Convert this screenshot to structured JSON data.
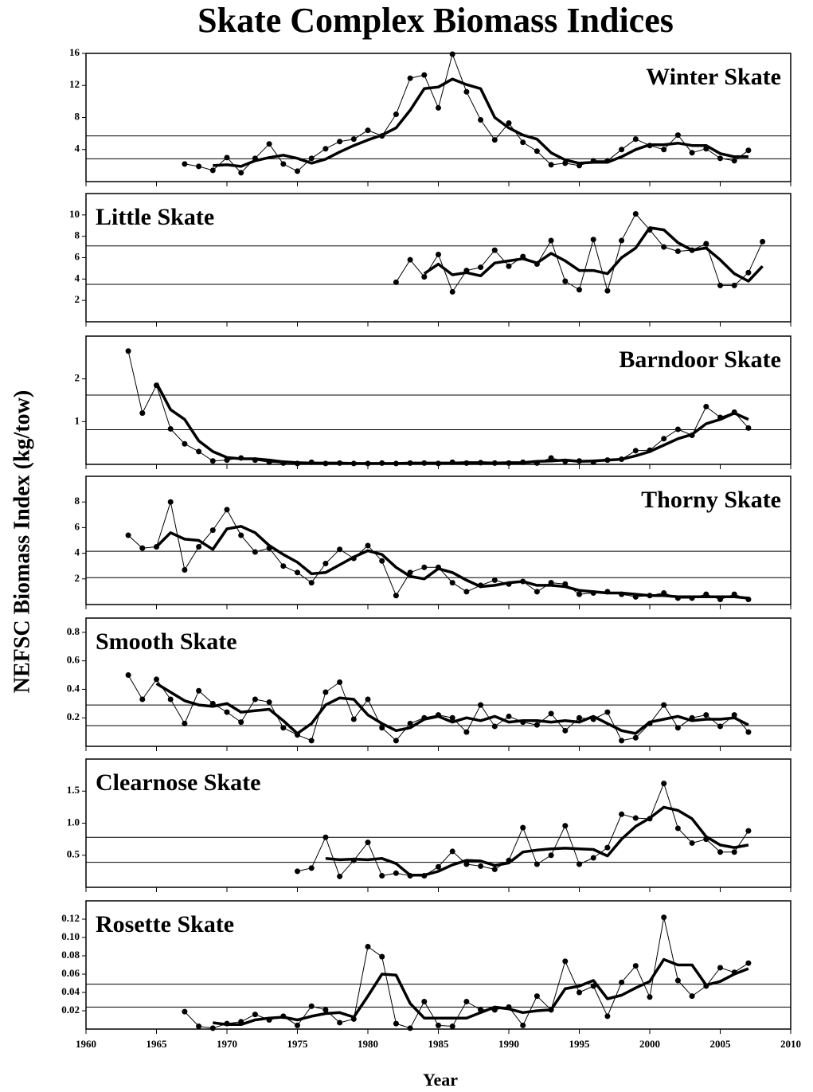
{
  "title": "Skate Complex Biomass Indices",
  "y_label": "NEFSC Biomass Index (kg/tow)",
  "x_label": "Year",
  "chart_data": [
    {
      "type": "line",
      "title": "Winter Skate",
      "title_position": "right",
      "x": [
        1967,
        1968,
        1969,
        1970,
        1971,
        1972,
        1973,
        1974,
        1975,
        1976,
        1977,
        1978,
        1979,
        1980,
        1981,
        1982,
        1983,
        1984,
        1985,
        1986,
        1987,
        1988,
        1989,
        1990,
        1991,
        1992,
        1993,
        1994,
        1995,
        1996,
        1997,
        1998,
        1999,
        2000,
        2001,
        2002,
        2003,
        2004,
        2005,
        2006,
        2007
      ],
      "series": [
        {
          "color": "#000000",
          "line_width": 1,
          "markers": true,
          "values": [
            2.2,
            1.9,
            1.4,
            3.0,
            1.1,
            2.9,
            4.7,
            2.2,
            1.3,
            2.9,
            4.1,
            5.0,
            5.3,
            6.4,
            5.7,
            8.4,
            12.9,
            13.3,
            9.2,
            15.9,
            11.2,
            7.7,
            5.2,
            7.3,
            4.9,
            3.8,
            2.1,
            2.3,
            2.0,
            2.6,
            2.6,
            4.0,
            5.3,
            4.5,
            4.0,
            5.8,
            3.6,
            4.1,
            2.9,
            2.6,
            3.9
          ]
        },
        {
          "color": "#000000",
          "line_width": 3.5,
          "markers": false,
          "values": [
            null,
            null,
            2.0,
            2.1,
            1.9,
            2.6,
            3.0,
            3.3,
            2.9,
            2.3,
            2.8,
            3.7,
            4.5,
            5.2,
            5.8,
            6.7,
            8.9,
            11.6,
            11.8,
            12.8,
            12.1,
            11.6,
            8.0,
            6.7,
            5.8,
            5.3,
            3.6,
            2.7,
            2.3,
            2.4,
            2.4,
            3.1,
            4.0,
            4.6,
            4.6,
            4.8,
            4.5,
            4.5,
            3.5,
            3.1,
            3.1
          ]
        }
      ],
      "reference_lines": [
        5.7,
        2.85
      ],
      "ylim": [
        0,
        16
      ],
      "yticks": [
        4,
        8,
        12,
        16
      ],
      "xlim": [
        1960,
        2010
      ]
    },
    {
      "type": "line",
      "title": "Little Skate",
      "title_position": "left",
      "x": [
        1982,
        1983,
        1984,
        1985,
        1986,
        1987,
        1988,
        1989,
        1990,
        1991,
        1992,
        1993,
        1994,
        1995,
        1996,
        1997,
        1998,
        1999,
        2000,
        2001,
        2002,
        2003,
        2004,
        2005,
        2006,
        2007,
        2008
      ],
      "series": [
        {
          "color": "#000000",
          "line_width": 1,
          "markers": true,
          "values": [
            3.7,
            5.8,
            4.2,
            6.3,
            2.8,
            4.8,
            5.1,
            6.7,
            5.2,
            6.1,
            5.4,
            7.6,
            3.8,
            3.0,
            7.7,
            2.9,
            7.6,
            10.1,
            8.6,
            7.0,
            6.6,
            6.7,
            7.3,
            3.4,
            3.4,
            4.6,
            7.5
          ]
        },
        {
          "color": "#000000",
          "line_width": 3.5,
          "markers": false,
          "values": [
            null,
            null,
            4.5,
            5.4,
            4.4,
            4.6,
            4.3,
            5.5,
            5.7,
            5.9,
            5.5,
            6.4,
            5.7,
            4.8,
            4.8,
            4.5,
            6.0,
            6.9,
            8.8,
            8.6,
            7.4,
            6.7,
            6.9,
            5.8,
            4.5,
            3.8,
            5.2
          ]
        }
      ],
      "reference_lines": [
        7.1,
        3.5
      ],
      "ylim": [
        0,
        12
      ],
      "yticks": [
        2,
        4,
        6,
        8,
        10
      ],
      "xlim": [
        1960,
        2010
      ]
    },
    {
      "type": "line",
      "title": "Barndoor Skate",
      "title_position": "right",
      "x": [
        1963,
        1964,
        1965,
        1966,
        1967,
        1968,
        1969,
        1970,
        1971,
        1972,
        1973,
        1974,
        1975,
        1976,
        1977,
        1978,
        1979,
        1980,
        1981,
        1982,
        1983,
        1984,
        1985,
        1986,
        1987,
        1988,
        1989,
        1990,
        1991,
        1992,
        1993,
        1994,
        1995,
        1996,
        1997,
        1998,
        1999,
        2000,
        2001,
        2002,
        2003,
        2004,
        2005,
        2006,
        2007
      ],
      "series": [
        {
          "color": "#000000",
          "line_width": 1,
          "markers": true,
          "values": [
            2.65,
            1.2,
            1.85,
            0.83,
            0.48,
            0.3,
            0.08,
            0.1,
            0.15,
            0.1,
            0.05,
            0.03,
            0.02,
            0.05,
            0.02,
            0.03,
            0.02,
            0.02,
            0.03,
            0.02,
            0.03,
            0.03,
            0.02,
            0.05,
            0.03,
            0.04,
            0.03,
            0.03,
            0.05,
            0.03,
            0.15,
            0.07,
            0.08,
            0.05,
            0.1,
            0.12,
            0.32,
            0.33,
            0.6,
            0.82,
            0.68,
            1.35,
            1.1,
            1.22,
            0.85
          ]
        },
        {
          "color": "#000000",
          "line_width": 3.5,
          "markers": false,
          "values": [
            null,
            null,
            1.9,
            1.28,
            1.05,
            0.55,
            0.3,
            0.16,
            0.13,
            0.13,
            0.1,
            0.06,
            0.04,
            0.03,
            0.03,
            0.03,
            0.02,
            0.02,
            0.02,
            0.02,
            0.03,
            0.03,
            0.03,
            0.03,
            0.04,
            0.04,
            0.03,
            0.04,
            0.04,
            0.07,
            0.08,
            0.1,
            0.07,
            0.08,
            0.1,
            0.12,
            0.2,
            0.3,
            0.45,
            0.6,
            0.7,
            0.95,
            1.05,
            1.2,
            1.05
          ]
        }
      ],
      "reference_lines": [
        1.62,
        0.81
      ],
      "ylim": [
        0,
        3
      ],
      "yticks": [
        1,
        2
      ],
      "xlim": [
        1960,
        2010
      ]
    },
    {
      "type": "line",
      "title": "Thorny Skate",
      "title_position": "right",
      "x": [
        1963,
        1964,
        1965,
        1966,
        1967,
        1968,
        1969,
        1970,
        1971,
        1972,
        1973,
        1974,
        1975,
        1976,
        1977,
        1978,
        1979,
        1980,
        1981,
        1982,
        1983,
        1984,
        1985,
        1986,
        1987,
        1988,
        1989,
        1990,
        1991,
        1992,
        1993,
        1994,
        1995,
        1996,
        1997,
        1998,
        1999,
        2000,
        2001,
        2002,
        2003,
        2004,
        2005,
        2006,
        2007
      ],
      "series": [
        {
          "color": "#000000",
          "line_width": 1,
          "markers": true,
          "values": [
            5.4,
            4.4,
            4.5,
            8.0,
            2.7,
            4.5,
            5.8,
            7.4,
            5.4,
            4.1,
            4.4,
            3.0,
            2.5,
            1.7,
            3.2,
            4.3,
            3.6,
            4.6,
            3.4,
            0.7,
            2.5,
            2.9,
            2.9,
            1.7,
            1.0,
            1.5,
            1.9,
            1.6,
            1.8,
            1.0,
            1.7,
            1.6,
            0.8,
            0.9,
            1.0,
            0.8,
            0.6,
            0.7,
            0.9,
            0.5,
            0.5,
            0.8,
            0.4,
            0.8,
            0.4
          ]
        },
        {
          "color": "#000000",
          "line_width": 3.5,
          "markers": false,
          "values": [
            null,
            null,
            4.5,
            5.6,
            5.1,
            5.0,
            4.3,
            5.9,
            6.1,
            5.6,
            4.6,
            3.9,
            3.3,
            2.4,
            2.5,
            3.1,
            3.7,
            4.2,
            3.9,
            2.9,
            2.2,
            2.0,
            2.8,
            2.5,
            1.9,
            1.4,
            1.5,
            1.7,
            1.8,
            1.5,
            1.5,
            1.4,
            1.1,
            1.0,
            0.9,
            0.9,
            0.8,
            0.7,
            0.7,
            0.6,
            0.6,
            0.6,
            0.6,
            0.6,
            0.5
          ]
        }
      ],
      "reference_lines": [
        4.15,
        2.1
      ],
      "ylim": [
        0,
        10
      ],
      "yticks": [
        2,
        4,
        6,
        8
      ],
      "xlim": [
        1960,
        2010
      ]
    },
    {
      "type": "line",
      "title": "Smooth Skate",
      "title_position": "left",
      "x": [
        1963,
        1964,
        1965,
        1966,
        1967,
        1968,
        1969,
        1970,
        1971,
        1972,
        1973,
        1974,
        1975,
        1976,
        1977,
        1978,
        1979,
        1980,
        1981,
        1982,
        1983,
        1984,
        1985,
        1986,
        1987,
        1988,
        1989,
        1990,
        1991,
        1992,
        1993,
        1994,
        1995,
        1996,
        1997,
        1998,
        1999,
        2000,
        2001,
        2002,
        2003,
        2004,
        2005,
        2006,
        2007
      ],
      "series": [
        {
          "color": "#000000",
          "line_width": 1,
          "markers": true,
          "values": [
            0.5,
            0.33,
            0.47,
            0.33,
            0.16,
            0.39,
            0.3,
            0.24,
            0.17,
            0.33,
            0.31,
            0.13,
            0.08,
            0.04,
            0.38,
            0.45,
            0.19,
            0.33,
            0.13,
            0.04,
            0.16,
            0.2,
            0.22,
            0.2,
            0.1,
            0.29,
            0.14,
            0.21,
            0.17,
            0.15,
            0.23,
            0.11,
            0.2,
            0.19,
            0.24,
            0.04,
            0.06,
            0.16,
            0.29,
            0.13,
            0.2,
            0.22,
            0.14,
            0.22,
            0.1
          ]
        },
        {
          "color": "#000000",
          "line_width": 3.5,
          "markers": false,
          "values": [
            null,
            null,
            0.44,
            0.38,
            0.32,
            0.29,
            0.28,
            0.3,
            0.24,
            0.25,
            0.26,
            0.18,
            0.09,
            0.16,
            0.29,
            0.34,
            0.33,
            0.22,
            0.16,
            0.11,
            0.13,
            0.19,
            0.21,
            0.17,
            0.2,
            0.18,
            0.21,
            0.17,
            0.18,
            0.18,
            0.17,
            0.18,
            0.17,
            0.21,
            0.16,
            0.11,
            0.09,
            0.17,
            0.19,
            0.21,
            0.18,
            0.19,
            0.19,
            0.2,
            0.15
          ]
        }
      ],
      "reference_lines": [
        0.29,
        0.145
      ],
      "ylim": [
        0,
        0.9
      ],
      "yticks": [
        0.2,
        0.4,
        0.6,
        0.8
      ],
      "xlim": [
        1960,
        2010
      ]
    },
    {
      "type": "line",
      "title": "Clearnose Skate",
      "title_position": "left",
      "x": [
        1975,
        1976,
        1977,
        1978,
        1979,
        1980,
        1981,
        1982,
        1983,
        1984,
        1985,
        1986,
        1987,
        1988,
        1989,
        1990,
        1991,
        1992,
        1993,
        1994,
        1995,
        1996,
        1997,
        1998,
        1999,
        2000,
        2001,
        2002,
        2003,
        2004,
        2005,
        2006,
        2007
      ],
      "series": [
        {
          "color": "#000000",
          "line_width": 1,
          "markers": true,
          "values": [
            0.25,
            0.3,
            0.78,
            0.17,
            0.42,
            0.7,
            0.18,
            0.22,
            0.18,
            0.18,
            0.32,
            0.56,
            0.36,
            0.33,
            0.28,
            0.42,
            0.93,
            0.36,
            0.5,
            0.96,
            0.36,
            0.46,
            0.62,
            1.14,
            1.08,
            1.07,
            1.62,
            0.92,
            0.69,
            0.75,
            0.55,
            0.55,
            0.88
          ]
        },
        {
          "color": "#000000",
          "line_width": 3.5,
          "markers": false,
          "values": [
            null,
            null,
            0.45,
            0.43,
            0.44,
            0.43,
            0.45,
            0.37,
            0.19,
            0.19,
            0.25,
            0.35,
            0.42,
            0.41,
            0.34,
            0.38,
            0.55,
            0.58,
            0.6,
            0.61,
            0.6,
            0.59,
            0.49,
            0.75,
            0.95,
            1.08,
            1.25,
            1.2,
            1.07,
            0.79,
            0.66,
            0.62,
            0.66
          ]
        }
      ],
      "reference_lines": [
        0.78,
        0.39
      ],
      "ylim": [
        0,
        2
      ],
      "yticks": [
        0.5,
        {
          "value": 1,
          "label": "1.0"
        },
        1.5
      ],
      "xlim": [
        1960,
        2010
      ]
    },
    {
      "type": "line",
      "title": "Rosette Skate",
      "title_position": "left",
      "x": [
        1967,
        1968,
        1969,
        1970,
        1971,
        1972,
        1973,
        1974,
        1975,
        1976,
        1977,
        1978,
        1979,
        1980,
        1981,
        1982,
        1983,
        1984,
        1985,
        1986,
        1987,
        1988,
        1989,
        1990,
        1991,
        1992,
        1993,
        1994,
        1995,
        1996,
        1997,
        1998,
        1999,
        2000,
        2001,
        2002,
        2003,
        2004,
        2005,
        2006,
        2007
      ],
      "series": [
        {
          "color": "#000000",
          "line_width": 1,
          "markers": true,
          "values": [
            0.019,
            0.003,
            0.001,
            0.006,
            0.008,
            0.016,
            0.01,
            0.014,
            0.004,
            0.025,
            0.021,
            0.007,
            0.011,
            0.09,
            0.079,
            0.006,
            0.001,
            0.03,
            0.004,
            0.003,
            0.03,
            0.021,
            0.021,
            0.024,
            0.004,
            0.036,
            0.021,
            0.074,
            0.04,
            0.047,
            0.014,
            0.051,
            0.069,
            0.035,
            0.122,
            0.053,
            0.036,
            0.047,
            0.067,
            0.062,
            0.072
          ]
        },
        {
          "color": "#000000",
          "line_width": 3.5,
          "markers": false,
          "values": [
            null,
            null,
            0.007,
            0.005,
            0.005,
            0.01,
            0.012,
            0.013,
            0.01,
            0.014,
            0.017,
            0.018,
            0.013,
            0.036,
            0.06,
            0.059,
            0.028,
            0.012,
            0.012,
            0.012,
            0.012,
            0.018,
            0.024,
            0.022,
            0.018,
            0.02,
            0.021,
            0.044,
            0.047,
            0.053,
            0.033,
            0.037,
            0.045,
            0.052,
            0.076,
            0.07,
            0.07,
            0.048,
            0.052,
            0.06,
            0.066
          ]
        }
      ],
      "reference_lines": [
        0.049,
        0.024
      ],
      "ylim": [
        0,
        0.14
      ],
      "yticks": [
        0.02,
        0.04,
        0.06,
        0.08,
        {
          "value": 0.1,
          "label": "0.10"
        },
        0.12
      ],
      "xlim": [
        1960,
        2010
      ],
      "xticks": [
        1960,
        1965,
        1970,
        1975,
        1980,
        1985,
        1990,
        1995,
        2000,
        2005,
        2010
      ]
    }
  ]
}
